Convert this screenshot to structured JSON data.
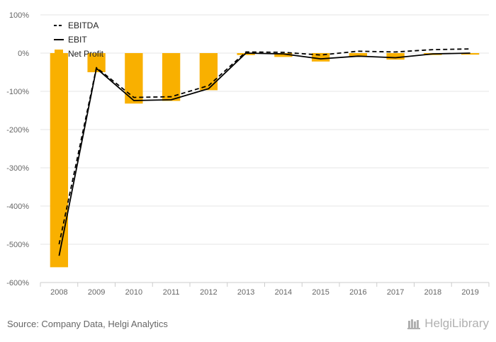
{
  "chart_data": {
    "type": "bar",
    "categories": [
      "2008",
      "2009",
      "2010",
      "2011",
      "2012",
      "2013",
      "2014",
      "2015",
      "2016",
      "2017",
      "2018",
      "2019"
    ],
    "y_ticks": [
      "100%",
      "0%",
      "-100%",
      "-200%",
      "-300%",
      "-400%",
      "-500%",
      "-600%"
    ],
    "ylim": [
      -600,
      100
    ],
    "y_unit": "%",
    "bar_series": {
      "name": "Net Profit",
      "color": "#f9b000",
      "values": [
        -560,
        -50,
        -132,
        -125,
        -97,
        -5,
        -10,
        -22,
        -10,
        -17,
        -5,
        -4
      ]
    },
    "line_series": [
      {
        "name": "EBITDA",
        "style": "dashed",
        "color": "#000000",
        "values": [
          -500,
          -38,
          -116,
          -114,
          -85,
          3,
          2,
          -5,
          5,
          3,
          9,
          11
        ]
      },
      {
        "name": "EBIT",
        "style": "solid",
        "color": "#000000",
        "values": [
          -530,
          -40,
          -124,
          -122,
          -93,
          0,
          -2,
          -15,
          -8,
          -12,
          -2,
          0
        ]
      }
    ],
    "legend": [
      "EBITDA",
      "EBIT",
      "Net Profit"
    ],
    "legend_position": "top-left",
    "grid": true
  },
  "footer": {
    "source": "Source: Company Data, Helgi Analytics",
    "brand": "HelgiLibrary"
  }
}
